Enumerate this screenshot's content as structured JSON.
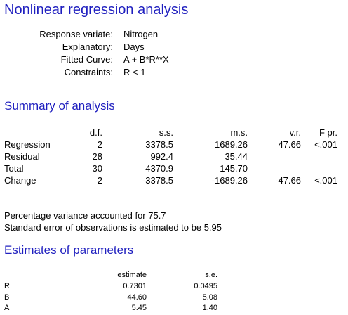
{
  "title": "Nonlinear regression analysis",
  "model": [
    {
      "label": "Response variate:",
      "value": "Nitrogen"
    },
    {
      "label": "Explanatory:",
      "value": "Days"
    },
    {
      "label": "Fitted Curve:",
      "value": "A + B*R**X"
    },
    {
      "label": "Constraints:",
      "value": "R < 1"
    }
  ],
  "summary": {
    "heading": "Summary of analysis",
    "columns": [
      "d.f.",
      "s.s.",
      "m.s.",
      "v.r.",
      "F pr."
    ],
    "rows": [
      {
        "source": "Regression",
        "df": "2",
        "ss": "3378.5",
        "ms": "1689.26",
        "vr": "47.66",
        "fpr": "<.001"
      },
      {
        "source": "Residual",
        "df": "28",
        "ss": "992.4",
        "ms": "35.44",
        "vr": "",
        "fpr": ""
      },
      {
        "source": "Total",
        "df": "30",
        "ss": "4370.9",
        "ms": "145.70",
        "vr": "",
        "fpr": ""
      },
      {
        "source": "Change",
        "df": "2",
        "ss": "-3378.5",
        "ms": "-1689.26",
        "vr": "-47.66",
        "fpr": "<.001"
      }
    ]
  },
  "notes": [
    "Percentage variance accounted for 75.7",
    "Standard error of observations is estimated to be 5.95"
  ],
  "estimates": {
    "heading": "Estimates of parameters",
    "columns": [
      "estimate",
      "s.e."
    ],
    "rows": [
      {
        "param": "R",
        "estimate": "0.7301",
        "se": "0.0495"
      },
      {
        "param": "B",
        "estimate": "44.60",
        "se": "5.08"
      },
      {
        "param": "A",
        "estimate": "5.45",
        "se": "1.40"
      }
    ]
  }
}
